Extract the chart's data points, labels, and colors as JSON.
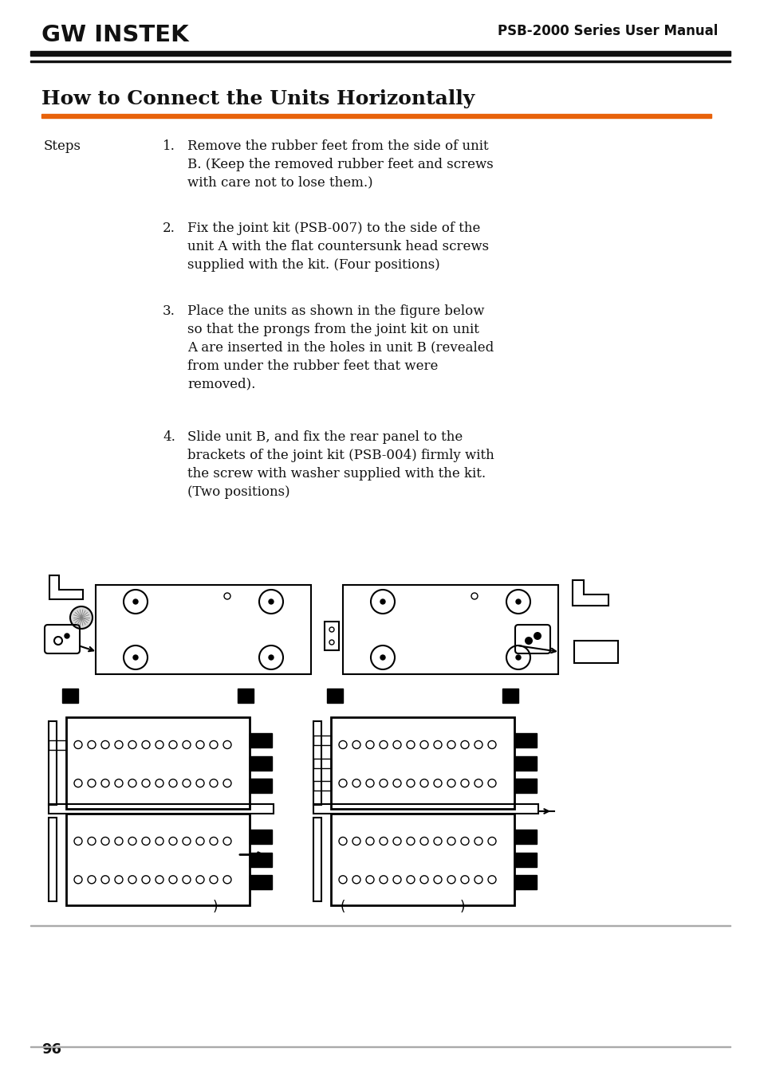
{
  "page_title": "How to Connect the Units Horizontally",
  "header_right": "PSB-2000 Series User Manual",
  "header_logo": "GW INSTEK",
  "orange_line_color": "#E8620A",
  "steps_label": "Steps",
  "steps": [
    {
      "num": "1.",
      "text": "Remove the rubber feet from the side of unit\nB. (Keep the removed rubber feet and screws\nwith care not to lose them.)"
    },
    {
      "num": "2.",
      "text": "Fix the joint kit (PSB-007) to the side of the\nunit A with the flat countersunk head screws\nsupplied with the kit. (Four positions)"
    },
    {
      "num": "3.",
      "text": "Place the units as shown in the figure below\nso that the prongs from the joint kit on unit\nA are inserted in the holes in unit B (revealed\nfrom under the rubber feet that were\nremoved)."
    },
    {
      "num": "4.",
      "text": "Slide unit B, and fix the rear panel to the\nbrackets of the joint kit (PSB-004) firmly with\nthe screw with washer supplied with the kit.\n(Two positions)"
    }
  ],
  "page_number": "96",
  "background_color": "#ffffff",
  "text_color": "#000000"
}
